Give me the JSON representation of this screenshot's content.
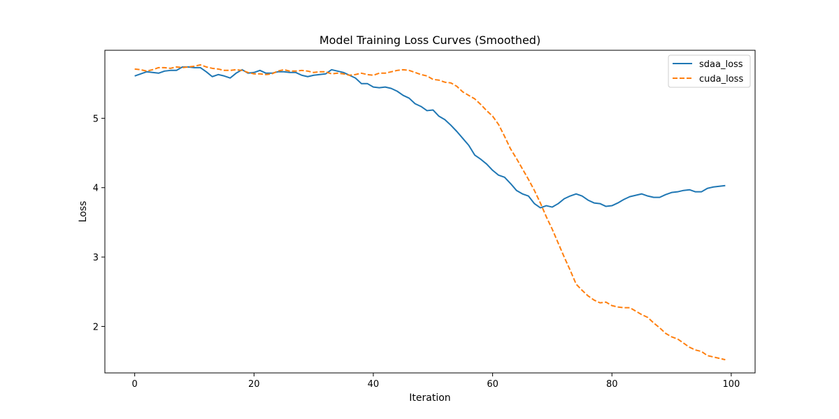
{
  "chart_data": {
    "type": "line",
    "title": "Model Training Loss Curves (Smoothed)",
    "xlabel": "Iteration",
    "ylabel": "Loss",
    "xlim": [
      -5,
      104
    ],
    "ylim": [
      1.33,
      5.98
    ],
    "xticks": [
      0,
      20,
      40,
      60,
      80,
      100
    ],
    "yticks": [
      2,
      3,
      4,
      5
    ],
    "grid": false,
    "legend": "top-right",
    "series": [
      {
        "name": "sdaa_loss",
        "color": "#1f77b4",
        "dash": "solid",
        "x": [
          0,
          1,
          2,
          3,
          4,
          5,
          6,
          7,
          8,
          9,
          10,
          11,
          12,
          13,
          14,
          15,
          16,
          17,
          18,
          19,
          20,
          21,
          22,
          23,
          24,
          25,
          26,
          27,
          28,
          29,
          30,
          31,
          32,
          33,
          34,
          35,
          36,
          37,
          38,
          39,
          40,
          41,
          42,
          43,
          44,
          45,
          46,
          47,
          48,
          49,
          50,
          51,
          52,
          53,
          54,
          55,
          56,
          57,
          58,
          59,
          60,
          61,
          62,
          63,
          64,
          65,
          66,
          67,
          68,
          69,
          70,
          71,
          72,
          73,
          74,
          75,
          76,
          77,
          78,
          79,
          80,
          81,
          82,
          83,
          84,
          85,
          86,
          87,
          88,
          89,
          90,
          91,
          92,
          93,
          94,
          95,
          96,
          97,
          98,
          99
        ],
        "values": [
          5.61,
          5.64,
          5.67,
          5.66,
          5.65,
          5.68,
          5.69,
          5.69,
          5.74,
          5.74,
          5.73,
          5.73,
          5.67,
          5.6,
          5.63,
          5.61,
          5.58,
          5.65,
          5.7,
          5.65,
          5.66,
          5.69,
          5.65,
          5.65,
          5.67,
          5.67,
          5.66,
          5.66,
          5.62,
          5.6,
          5.62,
          5.63,
          5.64,
          5.7,
          5.68,
          5.66,
          5.62,
          5.58,
          5.5,
          5.5,
          5.45,
          5.44,
          5.45,
          5.43,
          5.39,
          5.33,
          5.29,
          5.21,
          5.17,
          5.11,
          5.12,
          5.03,
          4.98,
          4.9,
          4.81,
          4.71,
          4.61,
          4.47,
          4.41,
          4.34,
          4.25,
          4.18,
          4.15,
          4.06,
          3.96,
          3.91,
          3.88,
          3.77,
          3.71,
          3.74,
          3.72,
          3.77,
          3.84,
          3.88,
          3.91,
          3.88,
          3.82,
          3.78,
          3.77,
          3.73,
          3.74,
          3.78,
          3.83,
          3.87,
          3.89,
          3.91,
          3.88,
          3.86,
          3.86,
          3.9,
          3.93,
          3.94,
          3.96,
          3.97,
          3.94,
          3.94,
          3.99,
          4.01,
          4.02,
          4.03
        ]
      },
      {
        "name": "cuda_loss",
        "color": "#ff7f0e",
        "dash": "dashed",
        "x": [
          0,
          1,
          2,
          3,
          4,
          5,
          6,
          7,
          8,
          9,
          10,
          11,
          12,
          13,
          14,
          15,
          16,
          17,
          18,
          19,
          20,
          21,
          22,
          23,
          24,
          25,
          26,
          27,
          28,
          29,
          30,
          31,
          32,
          33,
          34,
          35,
          36,
          37,
          38,
          39,
          40,
          41,
          42,
          43,
          44,
          45,
          46,
          47,
          48,
          49,
          50,
          51,
          52,
          53,
          54,
          55,
          56,
          57,
          58,
          59,
          60,
          61,
          62,
          63,
          64,
          65,
          66,
          67,
          68,
          69,
          70,
          71,
          72,
          73,
          74,
          75,
          76,
          77,
          78,
          79,
          80,
          81,
          82,
          83,
          84,
          85,
          86,
          87,
          88,
          89,
          90,
          91,
          92,
          93,
          94,
          95,
          96,
          97,
          98,
          99
        ],
        "values": [
          5.71,
          5.7,
          5.68,
          5.7,
          5.73,
          5.73,
          5.72,
          5.74,
          5.73,
          5.74,
          5.75,
          5.77,
          5.74,
          5.72,
          5.71,
          5.69,
          5.69,
          5.7,
          5.69,
          5.66,
          5.64,
          5.64,
          5.63,
          5.64,
          5.68,
          5.7,
          5.68,
          5.68,
          5.69,
          5.68,
          5.66,
          5.67,
          5.67,
          5.64,
          5.65,
          5.64,
          5.62,
          5.63,
          5.65,
          5.63,
          5.62,
          5.65,
          5.65,
          5.67,
          5.69,
          5.7,
          5.69,
          5.66,
          5.63,
          5.61,
          5.56,
          5.55,
          5.52,
          5.51,
          5.46,
          5.38,
          5.33,
          5.28,
          5.2,
          5.11,
          5.03,
          4.91,
          4.74,
          4.56,
          4.42,
          4.27,
          4.12,
          3.96,
          3.78,
          3.58,
          3.4,
          3.2,
          3.0,
          2.81,
          2.61,
          2.52,
          2.44,
          2.38,
          2.34,
          2.35,
          2.3,
          2.28,
          2.27,
          2.27,
          2.22,
          2.17,
          2.13,
          2.05,
          1.98,
          1.9,
          1.85,
          1.82,
          1.76,
          1.7,
          1.66,
          1.64,
          1.58,
          1.56,
          1.54,
          1.52
        ]
      }
    ]
  }
}
